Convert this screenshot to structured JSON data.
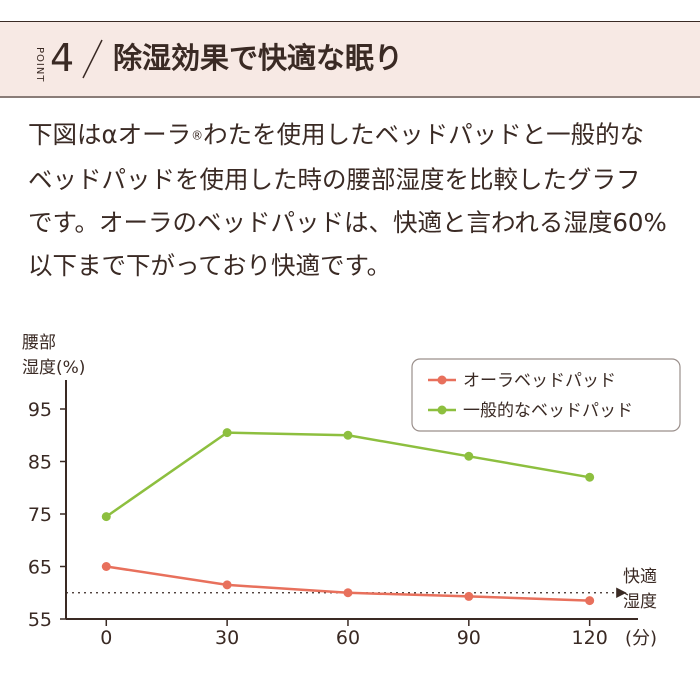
{
  "header": {
    "point_label": "POINT",
    "point_number": "4",
    "title": "除湿効果で快適な眠り"
  },
  "body": {
    "line1_a": "下図はαオーラ",
    "line1_reg": "®",
    "line1_b": "わたを使用したベッドパッドと一般的な",
    "line2": "ベッドパッドを使用した時の腰部湿度を比較したグラフ",
    "line3": "です。オーラのベッドパッドは、快適と言われる湿度60%",
    "line4": "以下まで下がっており快適です。"
  },
  "colors": {
    "aura": "#e8705c",
    "general": "#8dbf3f",
    "text": "#3a2a24"
  },
  "chart_data": {
    "type": "line",
    "y_axis_title_1": "腰部",
    "y_axis_title_2": "湿度(%)",
    "x_unit": "(分)",
    "x": [
      0,
      30,
      60,
      90,
      120
    ],
    "x_tick_labels": [
      "0",
      "30",
      "60",
      "90",
      "120"
    ],
    "y_ticks": [
      55,
      65,
      75,
      85,
      95
    ],
    "y_tick_labels": [
      "55",
      "65",
      "75",
      "85",
      "95"
    ],
    "ylim": [
      55,
      99
    ],
    "xlim": [
      -10,
      132
    ],
    "threshold": 60,
    "threshold_label_1": "快適",
    "threshold_label_2": "湿度",
    "legend_position": "top-right",
    "series": [
      {
        "name": "オーラベッドパッド",
        "color": "#e8705c",
        "values": [
          65,
          61.5,
          60,
          59.3,
          58.5
        ]
      },
      {
        "name": "一般的なベッドパッド",
        "color": "#8dbf3f",
        "values": [
          74.5,
          90.5,
          90,
          86,
          82
        ]
      }
    ]
  }
}
